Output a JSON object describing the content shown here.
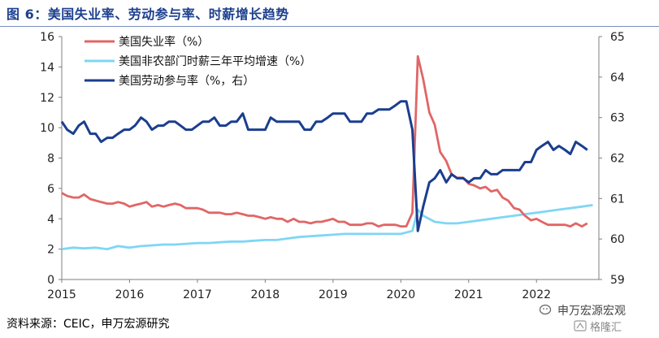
{
  "header": {
    "title": "图 6：美国失业率、劳动参与率、时薪增长趋势"
  },
  "footer": {
    "source": "资料来源：CEIC，申万宏源研究"
  },
  "watermark": {
    "line1": "申万宏源宏观",
    "line2": "格隆汇"
  },
  "chart_data": {
    "type": "line",
    "x_ticks": [
      "2015",
      "2016",
      "2017",
      "2018",
      "2019",
      "2020",
      "2021",
      "2022"
    ],
    "ylim_left": [
      0,
      16
    ],
    "yticks_left": [
      "0",
      "2",
      "4",
      "6",
      "8",
      "10",
      "12",
      "14",
      "16"
    ],
    "ylim_right": [
      59,
      65
    ],
    "yticks_right": [
      "59",
      "60",
      "61",
      "62",
      "63",
      "64",
      "65"
    ],
    "legend_position": "top-left",
    "grid": false,
    "series": [
      {
        "name": "美国失业率（%）",
        "axis": "left",
        "color": "#e06666",
        "points": [
          [
            2015.0,
            5.7
          ],
          [
            2015.08,
            5.5
          ],
          [
            2015.17,
            5.4
          ],
          [
            2015.25,
            5.4
          ],
          [
            2015.33,
            5.6
          ],
          [
            2015.42,
            5.3
          ],
          [
            2015.5,
            5.2
          ],
          [
            2015.58,
            5.1
          ],
          [
            2015.67,
            5.0
          ],
          [
            2015.75,
            5.0
          ],
          [
            2015.83,
            5.1
          ],
          [
            2015.92,
            5.0
          ],
          [
            2016.0,
            4.8
          ],
          [
            2016.08,
            4.9
          ],
          [
            2016.17,
            5.0
          ],
          [
            2016.25,
            5.1
          ],
          [
            2016.33,
            4.8
          ],
          [
            2016.42,
            4.9
          ],
          [
            2016.5,
            4.8
          ],
          [
            2016.58,
            4.9
          ],
          [
            2016.67,
            5.0
          ],
          [
            2016.75,
            4.9
          ],
          [
            2016.83,
            4.7
          ],
          [
            2016.92,
            4.7
          ],
          [
            2017.0,
            4.7
          ],
          [
            2017.08,
            4.6
          ],
          [
            2017.17,
            4.4
          ],
          [
            2017.25,
            4.4
          ],
          [
            2017.33,
            4.4
          ],
          [
            2017.42,
            4.3
          ],
          [
            2017.5,
            4.3
          ],
          [
            2017.58,
            4.4
          ],
          [
            2017.67,
            4.3
          ],
          [
            2017.75,
            4.2
          ],
          [
            2017.83,
            4.2
          ],
          [
            2017.92,
            4.1
          ],
          [
            2018.0,
            4.0
          ],
          [
            2018.08,
            4.1
          ],
          [
            2018.17,
            4.0
          ],
          [
            2018.25,
            4.0
          ],
          [
            2018.33,
            3.8
          ],
          [
            2018.42,
            4.0
          ],
          [
            2018.5,
            3.8
          ],
          [
            2018.58,
            3.8
          ],
          [
            2018.67,
            3.7
          ],
          [
            2018.75,
            3.8
          ],
          [
            2018.83,
            3.8
          ],
          [
            2018.92,
            3.9
          ],
          [
            2019.0,
            4.0
          ],
          [
            2019.08,
            3.8
          ],
          [
            2019.17,
            3.8
          ],
          [
            2019.25,
            3.6
          ],
          [
            2019.33,
            3.6
          ],
          [
            2019.42,
            3.6
          ],
          [
            2019.5,
            3.7
          ],
          [
            2019.58,
            3.7
          ],
          [
            2019.67,
            3.5
          ],
          [
            2019.75,
            3.6
          ],
          [
            2019.83,
            3.6
          ],
          [
            2019.92,
            3.6
          ],
          [
            2020.0,
            3.5
          ],
          [
            2020.08,
            3.5
          ],
          [
            2020.17,
            4.4
          ],
          [
            2020.25,
            14.7
          ],
          [
            2020.33,
            13.2
          ],
          [
            2020.42,
            11.0
          ],
          [
            2020.5,
            10.2
          ],
          [
            2020.58,
            8.4
          ],
          [
            2020.67,
            7.8
          ],
          [
            2020.75,
            6.9
          ],
          [
            2020.83,
            6.7
          ],
          [
            2020.92,
            6.7
          ],
          [
            2021.0,
            6.3
          ],
          [
            2021.08,
            6.2
          ],
          [
            2021.17,
            6.0
          ],
          [
            2021.25,
            6.1
          ],
          [
            2021.33,
            5.8
          ],
          [
            2021.42,
            5.9
          ],
          [
            2021.5,
            5.4
          ],
          [
            2021.58,
            5.2
          ],
          [
            2021.67,
            4.7
          ],
          [
            2021.75,
            4.6
          ],
          [
            2021.83,
            4.2
          ],
          [
            2021.92,
            3.9
          ],
          [
            2022.0,
            4.0
          ],
          [
            2022.08,
            3.8
          ],
          [
            2022.17,
            3.6
          ],
          [
            2022.25,
            3.6
          ],
          [
            2022.33,
            3.6
          ],
          [
            2022.42,
            3.6
          ],
          [
            2022.5,
            3.5
          ],
          [
            2022.58,
            3.7
          ],
          [
            2022.67,
            3.5
          ],
          [
            2022.75,
            3.7
          ]
        ]
      },
      {
        "name": "美国非农部门时薪三年平均增速（%）",
        "axis": "left",
        "color": "#7fd6f5",
        "points": [
          [
            2015.0,
            2.0
          ],
          [
            2015.17,
            2.1
          ],
          [
            2015.33,
            2.05
          ],
          [
            2015.5,
            2.1
          ],
          [
            2015.67,
            2.0
          ],
          [
            2015.83,
            2.2
          ],
          [
            2016.0,
            2.1
          ],
          [
            2016.17,
            2.2
          ],
          [
            2016.33,
            2.25
          ],
          [
            2016.5,
            2.3
          ],
          [
            2016.67,
            2.3
          ],
          [
            2016.83,
            2.35
          ],
          [
            2017.0,
            2.4
          ],
          [
            2017.17,
            2.4
          ],
          [
            2017.33,
            2.45
          ],
          [
            2017.5,
            2.5
          ],
          [
            2017.67,
            2.5
          ],
          [
            2017.83,
            2.55
          ],
          [
            2018.0,
            2.6
          ],
          [
            2018.17,
            2.6
          ],
          [
            2018.33,
            2.7
          ],
          [
            2018.5,
            2.8
          ],
          [
            2018.67,
            2.85
          ],
          [
            2018.83,
            2.9
          ],
          [
            2019.0,
            2.95
          ],
          [
            2019.17,
            3.0
          ],
          [
            2019.33,
            3.0
          ],
          [
            2019.5,
            3.0
          ],
          [
            2019.67,
            3.0
          ],
          [
            2019.83,
            3.0
          ],
          [
            2020.0,
            3.0
          ],
          [
            2020.17,
            3.2
          ],
          [
            2020.25,
            4.6
          ],
          [
            2020.33,
            4.2
          ],
          [
            2020.5,
            3.8
          ],
          [
            2020.67,
            3.7
          ],
          [
            2020.83,
            3.7
          ],
          [
            2021.0,
            3.8
          ],
          [
            2021.17,
            3.9
          ],
          [
            2021.33,
            4.0
          ],
          [
            2021.5,
            4.1
          ],
          [
            2021.67,
            4.2
          ],
          [
            2021.83,
            4.3
          ],
          [
            2022.0,
            4.4
          ],
          [
            2022.17,
            4.5
          ],
          [
            2022.33,
            4.6
          ],
          [
            2022.5,
            4.7
          ],
          [
            2022.67,
            4.8
          ],
          [
            2022.83,
            4.9
          ]
        ]
      },
      {
        "name": "美国劳动参与率（%，右）",
        "axis": "right",
        "color": "#1a3e8f",
        "points": [
          [
            2015.0,
            62.9
          ],
          [
            2015.08,
            62.7
          ],
          [
            2015.17,
            62.6
          ],
          [
            2015.25,
            62.8
          ],
          [
            2015.33,
            62.9
          ],
          [
            2015.42,
            62.6
          ],
          [
            2015.5,
            62.6
          ],
          [
            2015.58,
            62.4
          ],
          [
            2015.67,
            62.5
          ],
          [
            2015.75,
            62.5
          ],
          [
            2015.83,
            62.6
          ],
          [
            2015.92,
            62.7
          ],
          [
            2016.0,
            62.7
          ],
          [
            2016.08,
            62.8
          ],
          [
            2016.17,
            63.0
          ],
          [
            2016.25,
            62.9
          ],
          [
            2016.33,
            62.7
          ],
          [
            2016.42,
            62.8
          ],
          [
            2016.5,
            62.8
          ],
          [
            2016.58,
            62.9
          ],
          [
            2016.67,
            62.9
          ],
          [
            2016.75,
            62.8
          ],
          [
            2016.83,
            62.7
          ],
          [
            2016.92,
            62.7
          ],
          [
            2017.0,
            62.8
          ],
          [
            2017.08,
            62.9
          ],
          [
            2017.17,
            62.9
          ],
          [
            2017.25,
            63.0
          ],
          [
            2017.33,
            62.8
          ],
          [
            2017.42,
            62.8
          ],
          [
            2017.5,
            62.9
          ],
          [
            2017.58,
            62.9
          ],
          [
            2017.67,
            63.1
          ],
          [
            2017.75,
            62.7
          ],
          [
            2017.83,
            62.7
          ],
          [
            2017.92,
            62.7
          ],
          [
            2018.0,
            62.7
          ],
          [
            2018.08,
            63.0
          ],
          [
            2018.17,
            62.9
          ],
          [
            2018.25,
            62.9
          ],
          [
            2018.33,
            62.9
          ],
          [
            2018.42,
            62.9
          ],
          [
            2018.5,
            62.9
          ],
          [
            2018.58,
            62.7
          ],
          [
            2018.67,
            62.7
          ],
          [
            2018.75,
            62.9
          ],
          [
            2018.83,
            62.9
          ],
          [
            2018.92,
            63.0
          ],
          [
            2019.0,
            63.1
          ],
          [
            2019.08,
            63.1
          ],
          [
            2019.17,
            63.1
          ],
          [
            2019.25,
            62.9
          ],
          [
            2019.33,
            62.9
          ],
          [
            2019.42,
            62.9
          ],
          [
            2019.5,
            63.1
          ],
          [
            2019.58,
            63.1
          ],
          [
            2019.67,
            63.2
          ],
          [
            2019.75,
            63.2
          ],
          [
            2019.83,
            63.2
          ],
          [
            2019.92,
            63.3
          ],
          [
            2020.0,
            63.4
          ],
          [
            2020.08,
            63.4
          ],
          [
            2020.17,
            62.7
          ],
          [
            2020.25,
            60.2
          ],
          [
            2020.33,
            60.8
          ],
          [
            2020.42,
            61.4
          ],
          [
            2020.5,
            61.5
          ],
          [
            2020.58,
            61.7
          ],
          [
            2020.67,
            61.4
          ],
          [
            2020.75,
            61.6
          ],
          [
            2020.83,
            61.5
          ],
          [
            2020.92,
            61.5
          ],
          [
            2021.0,
            61.4
          ],
          [
            2021.08,
            61.5
          ],
          [
            2021.17,
            61.5
          ],
          [
            2021.25,
            61.7
          ],
          [
            2021.33,
            61.6
          ],
          [
            2021.42,
            61.6
          ],
          [
            2021.5,
            61.7
          ],
          [
            2021.58,
            61.7
          ],
          [
            2021.67,
            61.7
          ],
          [
            2021.75,
            61.7
          ],
          [
            2021.83,
            61.9
          ],
          [
            2021.92,
            61.9
          ],
          [
            2022.0,
            62.2
          ],
          [
            2022.08,
            62.3
          ],
          [
            2022.17,
            62.4
          ],
          [
            2022.25,
            62.2
          ],
          [
            2022.33,
            62.3
          ],
          [
            2022.42,
            62.2
          ],
          [
            2022.5,
            62.1
          ],
          [
            2022.58,
            62.4
          ],
          [
            2022.67,
            62.3
          ],
          [
            2022.75,
            62.2
          ]
        ]
      }
    ]
  }
}
